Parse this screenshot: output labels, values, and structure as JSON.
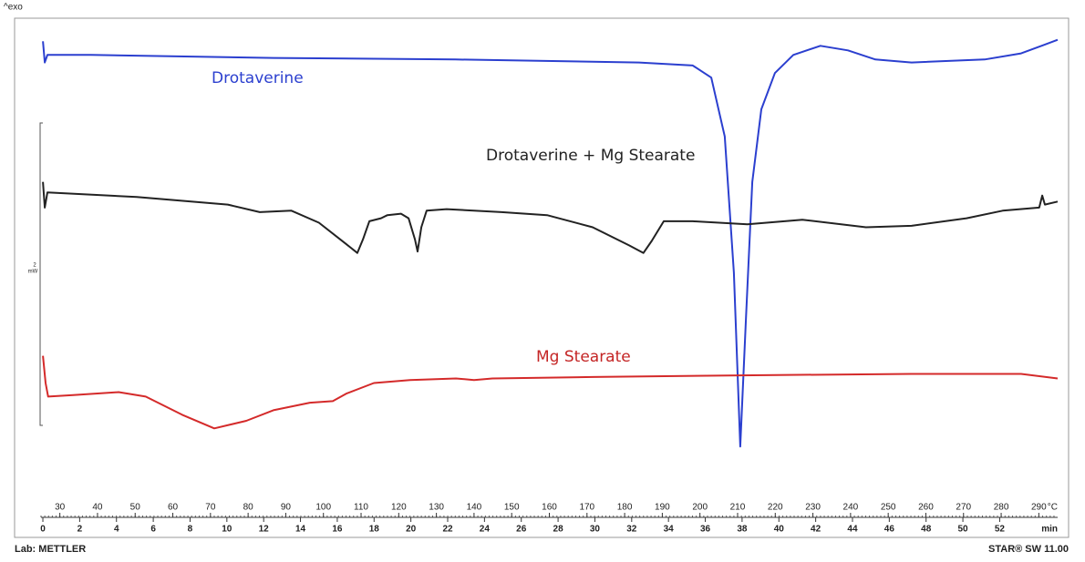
{
  "chart_data": {
    "type": "line",
    "corner_label": "^exo",
    "footer_left": "Lab: METTLER",
    "footer_right": "STAR® SW 11.00",
    "xlabel": "°C",
    "x2label": "min",
    "xlim": [
      25,
      295
    ],
    "xticks": [
      30,
      40,
      50,
      60,
      70,
      80,
      90,
      100,
      110,
      120,
      130,
      140,
      150,
      160,
      170,
      180,
      190,
      200,
      210,
      220,
      230,
      240,
      250,
      260,
      270,
      280,
      290
    ],
    "x2lim": [
      -0.1,
      55.15
    ],
    "x2ticks": [
      0,
      2,
      4,
      6,
      8,
      10,
      12,
      14,
      16,
      18,
      20,
      22,
      24,
      26,
      28,
      30,
      32,
      34,
      36,
      38,
      40,
      42,
      44,
      46,
      48,
      50,
      52
    ],
    "ylim": [
      0,
      3.2
    ],
    "scale_bar": {
      "value": 2,
      "unit": "mW"
    },
    "series": [
      {
        "name": "Drotaverine",
        "color": "#2b3fcf",
        "x": [
          25.5,
          26.0,
          26.7,
          38.3,
          86.7,
          135.1,
          183.8,
          198.1,
          203.0,
          206.6,
          209.0,
          210.7,
          212.2,
          213.9,
          216.3,
          219.9,
          224.8,
          232.0,
          239.3,
          246.6,
          256.2,
          275.6,
          285.3,
          295.0
        ],
        "values": [
          3.01,
          2.87,
          2.92,
          2.92,
          2.9,
          2.89,
          2.87,
          2.85,
          2.77,
          2.38,
          1.48,
          0.33,
          1.17,
          2.08,
          2.56,
          2.8,
          2.92,
          2.98,
          2.95,
          2.89,
          2.87,
          2.89,
          2.93,
          3.02
        ]
      },
      {
        "name": "Drotaverine + Mg Stearate",
        "color": "#222222",
        "x": [
          25.5,
          26.0,
          26.7,
          50.4,
          74.6,
          83.1,
          91.5,
          98.8,
          106.0,
          109.0,
          110.5,
          112.2,
          115.3,
          117.0,
          120.6,
          122.6,
          124.3,
          125.0,
          126.0,
          127.4,
          132.7,
          147.3,
          159.4,
          171.5,
          181.2,
          185.0,
          187.2,
          190.4,
          198.1,
          212.6,
          227.2,
          244.1,
          256.2,
          270.8,
          280.4,
          290.1,
          290.9,
          291.6,
          295.0
        ],
        "values": [
          2.08,
          1.91,
          2.01,
          1.98,
          1.93,
          1.88,
          1.89,
          1.81,
          1.67,
          1.61,
          1.7,
          1.82,
          1.84,
          1.86,
          1.87,
          1.84,
          1.7,
          1.62,
          1.78,
          1.89,
          1.9,
          1.88,
          1.86,
          1.78,
          1.66,
          1.61,
          1.69,
          1.82,
          1.82,
          1.8,
          1.83,
          1.78,
          1.79,
          1.84,
          1.89,
          1.91,
          1.99,
          1.93,
          1.95
        ]
      },
      {
        "name": "Mg Stearate",
        "color": "#d42a2a",
        "x": [
          25.5,
          26.2,
          26.9,
          33.5,
          45.6,
          52.8,
          62.5,
          71.0,
          79.5,
          86.7,
          96.4,
          102.5,
          106.1,
          113.4,
          123.0,
          135.2,
          140.0,
          144.9,
          171.5,
          207.8,
          256.2,
          285.3,
          295.0
        ],
        "values": [
          0.93,
          0.75,
          0.66,
          0.67,
          0.69,
          0.66,
          0.54,
          0.45,
          0.5,
          0.57,
          0.62,
          0.63,
          0.68,
          0.75,
          0.77,
          0.78,
          0.77,
          0.78,
          0.79,
          0.8,
          0.81,
          0.81,
          0.78
        ]
      }
    ]
  }
}
